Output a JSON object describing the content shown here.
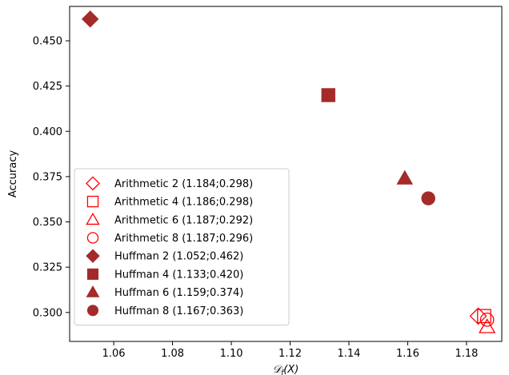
{
  "chart_data": {
    "type": "scatter",
    "title": "",
    "xlabel_main": "𝒟",
    "xlabel_sub": "f",
    "xlabel_rest": "(X)",
    "ylabel": "Accuracy",
    "xlim": [
      1.045,
      1.192
    ],
    "ylim": [
      0.284,
      0.469
    ],
    "xticks": [
      1.06,
      1.08,
      1.1,
      1.12,
      1.14,
      1.16,
      1.18
    ],
    "xtick_labels": [
      "1.06",
      "1.08",
      "1.10",
      "1.12",
      "1.14",
      "1.16",
      "1.18"
    ],
    "yticks": [
      0.3,
      0.325,
      0.35,
      0.375,
      0.4,
      0.425,
      0.45
    ],
    "ytick_labels": [
      "0.300",
      "0.325",
      "0.350",
      "0.375",
      "0.400",
      "0.425",
      "0.450"
    ],
    "grid": false,
    "legend_position": "lower-left",
    "colors": {
      "arithmetic": "#ff0000",
      "huffman": "#a52a2a"
    },
    "series": [
      {
        "name": "Arithmetic 2 (1.184;0.298)",
        "marker": "diamond",
        "filled": false,
        "color": "#ff0000",
        "x": [
          1.184
        ],
        "y": [
          0.298
        ]
      },
      {
        "name": "Arithmetic 4 (1.186;0.298)",
        "marker": "square",
        "filled": false,
        "color": "#ff0000",
        "x": [
          1.186
        ],
        "y": [
          0.298
        ]
      },
      {
        "name": "Arithmetic 6 (1.187;0.292)",
        "marker": "triangle",
        "filled": false,
        "color": "#ff0000",
        "x": [
          1.187
        ],
        "y": [
          0.292
        ]
      },
      {
        "name": "Arithmetic 8 (1.187;0.296)",
        "marker": "circle",
        "filled": false,
        "color": "#ff0000",
        "x": [
          1.187
        ],
        "y": [
          0.296
        ]
      },
      {
        "name": "Huffman 2 (1.052;0.462)",
        "marker": "diamond",
        "filled": true,
        "color": "#a52a2a",
        "x": [
          1.052
        ],
        "y": [
          0.462
        ]
      },
      {
        "name": "Huffman 4 (1.133;0.420)",
        "marker": "square",
        "filled": true,
        "color": "#a52a2a",
        "x": [
          1.133
        ],
        "y": [
          0.42
        ]
      },
      {
        "name": "Huffman 6 (1.159;0.374)",
        "marker": "triangle",
        "filled": true,
        "color": "#a52a2a",
        "x": [
          1.159
        ],
        "y": [
          0.374
        ]
      },
      {
        "name": "Huffman 8 (1.167;0.363)",
        "marker": "circle",
        "filled": true,
        "color": "#a52a2a",
        "x": [
          1.167
        ],
        "y": [
          0.363
        ]
      }
    ]
  }
}
